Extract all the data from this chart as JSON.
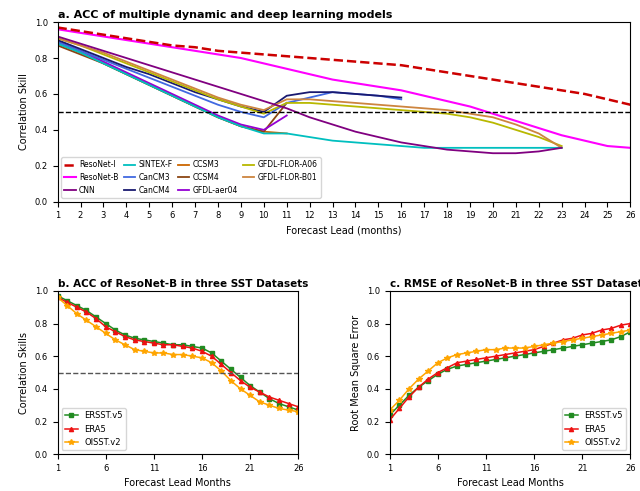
{
  "title_a": "a. ACC of multiple dynamic and deep learning models",
  "title_b": "b. ACC of ResoNet-B in three SST Datasets",
  "title_c": "c. RMSE of ResoNet-B in three SST Datasets",
  "xlabel_a": "Forecast Lead (months)",
  "xlabel_bc": "Forecast Lead Months",
  "ylabel_a": "Correlation Skill",
  "ylabel_b": "Correlation Skills",
  "ylabel_c": "Root Mean Square Error",
  "leads_a": [
    1,
    2,
    3,
    4,
    5,
    6,
    7,
    8,
    9,
    10,
    11,
    12,
    13,
    14,
    15,
    16,
    17,
    18,
    19,
    20,
    21,
    22,
    23,
    24,
    25,
    26
  ],
  "ResoNet_I": [
    0.97,
    0.95,
    0.93,
    0.91,
    0.89,
    0.87,
    0.86,
    0.84,
    0.83,
    0.82,
    0.81,
    0.8,
    0.79,
    0.78,
    0.77,
    0.76,
    0.74,
    0.72,
    0.7,
    0.68,
    0.66,
    0.64,
    0.62,
    0.6,
    0.57,
    0.54
  ],
  "ResoNet_B": [
    0.96,
    0.94,
    0.92,
    0.9,
    0.88,
    0.86,
    0.84,
    0.82,
    0.8,
    0.77,
    0.74,
    0.71,
    0.68,
    0.66,
    0.64,
    0.62,
    0.59,
    0.56,
    0.53,
    0.49,
    0.45,
    0.41,
    0.37,
    0.34,
    0.31,
    0.3
  ],
  "CNN": [
    0.92,
    0.88,
    0.84,
    0.8,
    0.76,
    0.72,
    0.68,
    0.64,
    0.6,
    0.56,
    0.52,
    0.47,
    0.43,
    0.39,
    0.36,
    0.33,
    0.31,
    0.29,
    0.28,
    0.27,
    0.27,
    0.28,
    0.3,
    null,
    null,
    null
  ],
  "SINTEX_F": [
    0.88,
    0.83,
    0.77,
    0.71,
    0.65,
    0.59,
    0.53,
    0.47,
    0.42,
    0.38,
    0.38,
    0.36,
    0.34,
    0.33,
    0.32,
    0.31,
    0.3,
    0.3,
    0.3,
    0.3,
    0.3,
    0.3,
    0.3,
    null,
    null,
    null
  ],
  "CanCM3": [
    0.89,
    0.84,
    0.79,
    0.74,
    0.69,
    0.64,
    0.59,
    0.54,
    0.5,
    0.47,
    0.55,
    0.58,
    0.61,
    0.6,
    0.59,
    0.57,
    null,
    null,
    null,
    null,
    null,
    null,
    null,
    null,
    null,
    null
  ],
  "CanCM4": [
    0.9,
    0.85,
    0.8,
    0.75,
    0.71,
    0.66,
    0.61,
    0.57,
    0.53,
    0.5,
    0.59,
    0.61,
    0.61,
    0.6,
    0.59,
    0.58,
    null,
    null,
    null,
    null,
    null,
    null,
    null,
    null,
    null,
    null
  ],
  "CCSM3": [
    0.88,
    0.83,
    0.77,
    0.71,
    0.65,
    0.59,
    0.53,
    0.47,
    0.42,
    0.39,
    0.38,
    null,
    null,
    null,
    null,
    null,
    null,
    null,
    null,
    null,
    null,
    null,
    null,
    null,
    null,
    null
  ],
  "CCSM4": [
    0.87,
    0.82,
    0.77,
    0.71,
    0.65,
    0.59,
    0.53,
    0.47,
    0.42,
    0.39,
    0.55,
    null,
    null,
    null,
    null,
    null,
    null,
    null,
    null,
    null,
    null,
    null,
    null,
    null,
    null,
    null
  ],
  "GFDL_aer04": [
    0.89,
    0.84,
    0.78,
    0.72,
    0.66,
    0.6,
    0.54,
    0.48,
    0.43,
    0.4,
    0.48,
    null,
    null,
    null,
    null,
    null,
    null,
    null,
    null,
    null,
    null,
    null,
    null,
    null,
    null,
    null
  ],
  "GFDL_FLOR_A06": [
    0.91,
    0.87,
    0.82,
    0.77,
    0.72,
    0.67,
    0.62,
    0.57,
    0.53,
    0.49,
    0.55,
    0.55,
    0.54,
    0.53,
    0.52,
    0.51,
    0.5,
    0.49,
    0.47,
    0.44,
    0.4,
    0.36,
    0.31,
    null,
    null,
    null
  ],
  "GFDL_FLOR_B01": [
    0.91,
    0.87,
    0.83,
    0.78,
    0.73,
    0.68,
    0.63,
    0.58,
    0.54,
    0.51,
    0.57,
    0.57,
    0.56,
    0.55,
    0.54,
    0.53,
    0.52,
    0.51,
    0.49,
    0.47,
    0.43,
    0.38,
    0.3,
    null,
    null,
    null
  ],
  "color_ResoNet_I": "#CC0000",
  "color_ResoNet_B": "#FF00FF",
  "color_CNN": "#800080",
  "color_SINTEX_F": "#00BFBF",
  "color_CanCM3": "#4169E1",
  "color_CanCM4": "#191970",
  "color_CCSM3": "#CC6600",
  "color_CCSM4": "#8B4513",
  "color_GFDL_aer04": "#9400D3",
  "color_GFDL_FLOR_A06": "#B8B800",
  "color_GFDL_FLOR_B01": "#CD853F",
  "leads_bc": [
    1,
    2,
    3,
    4,
    5,
    6,
    7,
    8,
    9,
    10,
    11,
    12,
    13,
    14,
    15,
    16,
    17,
    18,
    19,
    20,
    21,
    22,
    23,
    24,
    25,
    26
  ],
  "acc_ERSST": [
    0.97,
    0.94,
    0.91,
    0.88,
    0.84,
    0.8,
    0.76,
    0.73,
    0.71,
    0.7,
    0.69,
    0.68,
    0.67,
    0.67,
    0.66,
    0.65,
    0.62,
    0.57,
    0.52,
    0.47,
    0.42,
    0.38,
    0.34,
    0.31,
    0.29,
    0.27
  ],
  "acc_ERA5": [
    0.96,
    0.93,
    0.9,
    0.87,
    0.83,
    0.78,
    0.75,
    0.72,
    0.7,
    0.69,
    0.68,
    0.67,
    0.67,
    0.66,
    0.65,
    0.63,
    0.6,
    0.55,
    0.5,
    0.45,
    0.41,
    0.38,
    0.35,
    0.33,
    0.31,
    0.29
  ],
  "acc_OISST": [
    0.96,
    0.91,
    0.86,
    0.82,
    0.78,
    0.74,
    0.7,
    0.67,
    0.64,
    0.63,
    0.62,
    0.62,
    0.61,
    0.61,
    0.6,
    0.59,
    0.56,
    0.51,
    0.45,
    0.4,
    0.36,
    0.32,
    0.3,
    0.28,
    0.27,
    0.26
  ],
  "rmse_ERSST": [
    0.24,
    0.3,
    0.36,
    0.41,
    0.45,
    0.49,
    0.52,
    0.54,
    0.55,
    0.56,
    0.57,
    0.58,
    0.59,
    0.6,
    0.61,
    0.62,
    0.63,
    0.64,
    0.65,
    0.66,
    0.67,
    0.68,
    0.69,
    0.7,
    0.72,
    0.75
  ],
  "rmse_ERA5": [
    0.21,
    0.28,
    0.35,
    0.41,
    0.46,
    0.5,
    0.53,
    0.56,
    0.57,
    0.58,
    0.59,
    0.6,
    0.61,
    0.62,
    0.63,
    0.64,
    0.66,
    0.68,
    0.7,
    0.71,
    0.73,
    0.74,
    0.76,
    0.77,
    0.79,
    0.8
  ],
  "rmse_OISST": [
    0.27,
    0.33,
    0.4,
    0.46,
    0.51,
    0.56,
    0.59,
    0.61,
    0.62,
    0.63,
    0.64,
    0.64,
    0.65,
    0.65,
    0.65,
    0.66,
    0.67,
    0.68,
    0.69,
    0.7,
    0.71,
    0.72,
    0.73,
    0.74,
    0.75,
    0.76
  ],
  "color_ERSST": "#228B22",
  "color_ERA5": "#EE1111",
  "color_OISST": "#FFA500"
}
